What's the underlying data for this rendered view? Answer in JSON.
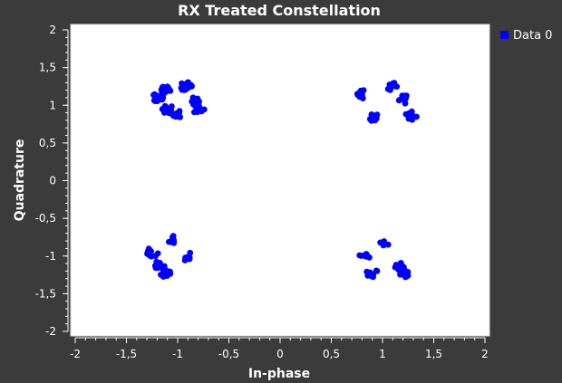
{
  "chart_data": {
    "type": "scatter",
    "title": "RX Treated Constellation",
    "xlabel": "In-phase",
    "ylabel": "Quadrature",
    "xlim": [
      -2,
      2
    ],
    "ylim": [
      -2,
      2
    ],
    "x_ticks": [
      "-2",
      "-1,5",
      "-1",
      "-0,5",
      "0",
      "0,5",
      "1",
      "1,5",
      "2"
    ],
    "y_ticks": [
      "2",
      "1,5",
      "1",
      "0,5",
      "0",
      "-0,5",
      "-1",
      "-1,5",
      "-2"
    ],
    "grid": false,
    "legend_position": "top-right",
    "series": [
      {
        "name": "Data 0",
        "color": "#0000ff",
        "clusters": [
          {
            "center": [
              -1.2,
              1.1
            ],
            "count": 14
          },
          {
            "center": [
              -1.12,
              1.22
            ],
            "count": 10
          },
          {
            "center": [
              -1.1,
              0.95
            ],
            "count": 18
          },
          {
            "center": [
              -1.02,
              0.88
            ],
            "count": 12
          },
          {
            "center": [
              -0.92,
              1.25
            ],
            "count": 14
          },
          {
            "center": [
              -0.85,
              1.05
            ],
            "count": 10
          },
          {
            "center": [
              -0.8,
              0.95
            ],
            "count": 9
          },
          {
            "center": [
              0.8,
              1.15
            ],
            "count": 10
          },
          {
            "center": [
              0.9,
              0.85
            ],
            "count": 10
          },
          {
            "center": [
              1.1,
              1.25
            ],
            "count": 8
          },
          {
            "center": [
              1.2,
              1.08
            ],
            "count": 8
          },
          {
            "center": [
              1.28,
              0.86
            ],
            "count": 10
          },
          {
            "center": [
              -1.25,
              -0.95
            ],
            "count": 10
          },
          {
            "center": [
              -1.18,
              -1.12
            ],
            "count": 14
          },
          {
            "center": [
              -1.12,
              -1.22
            ],
            "count": 16
          },
          {
            "center": [
              -1.05,
              -0.78
            ],
            "count": 7
          },
          {
            "center": [
              -0.92,
              -1.0
            ],
            "count": 8
          },
          {
            "center": [
              0.82,
              -1.0
            ],
            "count": 9
          },
          {
            "center": [
              0.9,
              -1.22
            ],
            "count": 12
          },
          {
            "center": [
              1.0,
              -0.85
            ],
            "count": 6
          },
          {
            "center": [
              1.18,
              -1.15
            ],
            "count": 14
          },
          {
            "center": [
              1.22,
              -1.22
            ],
            "count": 10
          }
        ]
      }
    ]
  }
}
